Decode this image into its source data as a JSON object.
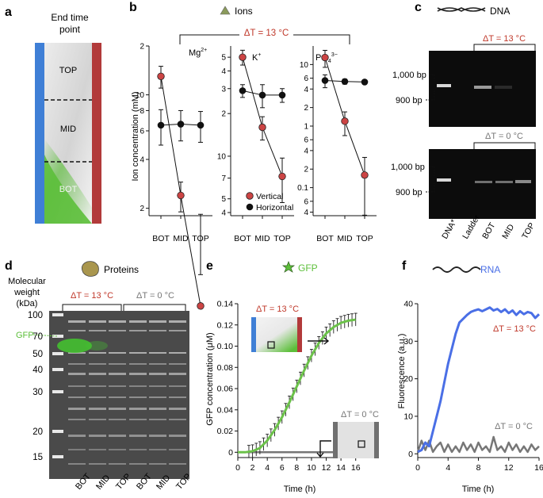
{
  "panel_letters": {
    "a": "a",
    "b": "b",
    "c": "c",
    "d": "d",
    "e": "e",
    "f": "f"
  },
  "colors": {
    "red": "#c0392b",
    "red_marker": "#cc4444",
    "green": "#6cc24a",
    "blue": "#4a6fe6",
    "grey": "#777777",
    "black": "#111111",
    "tube_left": "#3f7fd6",
    "tube_right": "#b23a3a"
  },
  "panel_a": {
    "title_line1": "End time",
    "title_line2": "point",
    "labels": [
      "TOP",
      "MID",
      "BOT"
    ]
  },
  "panel_b": {
    "title": "Ions",
    "delta_label": "ΔT = 13 °C",
    "ylabel": "Ion concentration (mM)",
    "legend": [
      "Vertical",
      "Horizontal"
    ],
    "chart_data": [
      {
        "type": "line",
        "name": "Mg2+",
        "title": "Mg",
        "title_sup": "2+",
        "categories": [
          "BOT",
          "MID",
          "TOP"
        ],
        "yscale": "log",
        "ylim": [
          1.8,
          20
        ],
        "yticks": [
          {
            "v": 2,
            "l": "2"
          },
          {
            "v": 4,
            "l": "4"
          },
          {
            "v": 6,
            "l": "6"
          },
          {
            "v": 8,
            "l": "8"
          },
          {
            "v": 10,
            "l": "10"
          },
          {
            "v": 20,
            "l": "2"
          }
        ],
        "series": [
          {
            "name": "Vertical",
            "values": [
              13,
              2.4,
              0.5
            ],
            "errors": [
              2,
              0.5,
              0.28
            ]
          },
          {
            "name": "Horizontal",
            "values": [
              6.5,
              6.6,
              6.5
            ],
            "errors": [
              1.6,
              1.4,
              1.4
            ]
          }
        ]
      },
      {
        "type": "line",
        "name": "K+",
        "title": "K",
        "title_sup": "+",
        "categories": [
          "BOT",
          "MID",
          "TOP"
        ],
        "yscale": "log",
        "ylim": [
          3.8,
          60
        ],
        "yticks": [
          {
            "v": 4,
            "l": "4"
          },
          {
            "v": 5,
            "l": "5"
          },
          {
            "v": 7,
            "l": "7"
          },
          {
            "v": 10,
            "l": "10"
          },
          {
            "v": 20,
            "l": "2"
          },
          {
            "v": 30,
            "l": "3"
          },
          {
            "v": 40,
            "l": "4"
          },
          {
            "v": 50,
            "l": "5"
          }
        ],
        "series": [
          {
            "name": "Vertical",
            "values": [
              50,
              16,
              7.2
            ],
            "errors": [
              6,
              3,
              2.5
            ]
          },
          {
            "name": "Horizontal",
            "values": [
              29,
              27,
              27
            ],
            "errors": [
              3,
              5,
              3
            ]
          }
        ]
      },
      {
        "type": "line",
        "name": "PO43-",
        "title": "PO",
        "title_sub": "4",
        "title_sup": "3−",
        "categories": [
          "BOT",
          "MID",
          "TOP"
        ],
        "yscale": "log",
        "ylim": [
          0.035,
          20
        ],
        "yticks": [
          {
            "v": 0.04,
            "l": "4"
          },
          {
            "v": 0.06,
            "l": "6"
          },
          {
            "v": 0.1,
            "l": "0.1"
          },
          {
            "v": 0.2,
            "l": "2"
          },
          {
            "v": 0.4,
            "l": "4"
          },
          {
            "v": 0.6,
            "l": "6"
          },
          {
            "v": 1,
            "l": "1"
          },
          {
            "v": 2,
            "l": "2"
          },
          {
            "v": 4,
            "l": "4"
          },
          {
            "v": 6,
            "l": "6"
          },
          {
            "v": 10,
            "l": "10"
          }
        ],
        "series": [
          {
            "name": "Vertical",
            "values": [
              13,
              1.2,
              0.16
            ],
            "errors": [
              4,
              0.5,
              0.15
            ]
          },
          {
            "name": "Horizontal",
            "values": [
              5.5,
              5.3,
              5.2
            ],
            "errors": [
              1.3,
              0.5,
              0.4
            ]
          }
        ]
      }
    ]
  },
  "panel_c": {
    "title": "DNA",
    "delta_top": "ΔT = 13 °C",
    "delta_bottom": "ΔT = 0 °C",
    "bp_1000": "1,000 bp",
    "bp_900": "900 bp",
    "lanes": [
      "DNA*",
      "Ladder",
      "BOT",
      "MID",
      "TOP"
    ]
  },
  "panel_d": {
    "title": "Proteins",
    "ylabel_line1": "Molecular",
    "ylabel_line2": "weight",
    "ylabel_line3": "(kDa)",
    "delta_hot": "ΔT = 13 °C",
    "delta_cold": "ΔT = 0 °C",
    "gfp_label": "GFP",
    "mw_markers": [
      "100",
      "70",
      "50",
      "40",
      "30",
      "20",
      "15"
    ],
    "lanes": [
      "BOT",
      "MID",
      "TOP",
      "BOT",
      "MID",
      "TOP"
    ]
  },
  "panel_e": {
    "title": "GFP",
    "inset_hot": "ΔT = 13 °C",
    "inset_cold": "ΔT = 0 °C",
    "chart_data": {
      "type": "line",
      "xlabel": "Time (h)",
      "ylabel": "GFP concentration (μM)",
      "xlim": [
        0,
        17
      ],
      "ylim": [
        -0.005,
        0.14
      ],
      "xticks": [
        0,
        2,
        4,
        6,
        8,
        10,
        12,
        14,
        16
      ],
      "yticks": [
        0,
        0.02,
        0.04,
        0.06,
        0.08,
        0.1,
        0.12,
        0.14
      ],
      "ytick_labels": [
        "0",
        "0.02",
        "0.04",
        "0.06",
        "0.08",
        "0.10",
        "0.12",
        "0.14"
      ],
      "series": [
        {
          "name": "ΔT = 13 °C",
          "x": [
            0,
            1,
            2,
            3,
            4,
            5,
            6,
            7,
            8,
            9,
            10,
            11,
            12,
            13,
            14,
            15,
            16
          ],
          "y": [
            0,
            0,
            0.001,
            0.004,
            0.011,
            0.021,
            0.033,
            0.047,
            0.062,
            0.077,
            0.091,
            0.103,
            0.112,
            0.118,
            0.122,
            0.124,
            0.125
          ],
          "error": 0.006
        },
        {
          "name": "ΔT = 0 °C",
          "x": [
            0,
            16.5
          ],
          "y": [
            0,
            0
          ]
        }
      ]
    }
  },
  "panel_f": {
    "title": "RNA",
    "label_hot": "ΔT = 13 °C",
    "label_cold": "ΔT = 0 °C",
    "chart_data": {
      "type": "line",
      "xlabel": "Time (h)",
      "ylabel": "Fluorescence (a.u.)",
      "xlim": [
        0,
        16
      ],
      "ylim": [
        -1,
        40
      ],
      "xticks": [
        0,
        4,
        8,
        12,
        16
      ],
      "yticks": [
        0,
        10,
        20,
        30,
        40
      ],
      "series": [
        {
          "name": "ΔT = 13 °C",
          "x": [
            0,
            0.5,
            1,
            1.5,
            2,
            2.5,
            3,
            3.5,
            4,
            4.5,
            5,
            5.5,
            6,
            6.5,
            7,
            7.5,
            8,
            8.5,
            9,
            9.5,
            10,
            10.5,
            11,
            11.5,
            12,
            12.5,
            13,
            13.5,
            14,
            14.5,
            15,
            15.5,
            16
          ],
          "y": [
            0.5,
            1,
            3,
            2,
            6,
            10,
            14,
            19,
            24,
            28,
            32,
            35,
            36,
            37,
            37.8,
            38.2,
            38.5,
            38,
            38.5,
            39,
            38.2,
            38.6,
            37.8,
            38.5,
            37.5,
            38.2,
            37,
            38,
            37.2,
            37.8,
            37.5,
            36.2,
            37.2
          ]
        },
        {
          "name": "ΔT = 0 °C",
          "x": [
            0,
            0.5,
            1,
            1.5,
            2,
            2.5,
            3,
            3.5,
            4,
            4.5,
            5,
            5.5,
            6,
            6.5,
            7,
            7.5,
            8,
            8.5,
            9,
            9.5,
            10,
            10.5,
            11,
            11.5,
            12,
            12.5,
            13,
            13.5,
            14,
            14.5,
            15,
            15.5,
            16
          ],
          "y": [
            0.5,
            3.5,
            1,
            3.5,
            0.5,
            2,
            3,
            0.5,
            2.5,
            0.5,
            2,
            0.5,
            3,
            1,
            2.5,
            0.5,
            3,
            1,
            2,
            0.5,
            4.5,
            1,
            2,
            0.5,
            3,
            1,
            2.5,
            0.5,
            2,
            0.5,
            2.5,
            1,
            2
          ]
        }
      ]
    }
  }
}
